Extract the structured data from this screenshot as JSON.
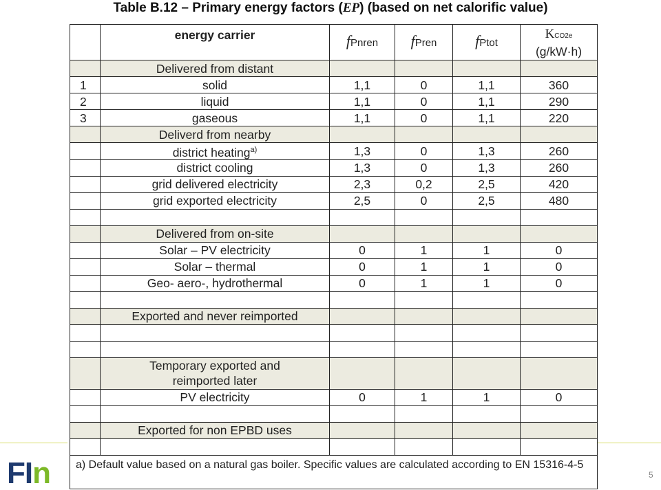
{
  "title": {
    "prefix": "Table B.12 – Primary energy factors (",
    "symbol": "EP",
    "suffix": ") (based on net calorific value)"
  },
  "table": {
    "columns": {
      "carrier": "energy carrier",
      "f_pnren": {
        "f": "f",
        "sub": "Pnren"
      },
      "f_pren": {
        "f": "f",
        "sub": "Pren"
      },
      "f_ptot": {
        "f": "f",
        "sub": "Ptot"
      },
      "k_co2e": {
        "k": "K",
        "sub": "CO2e",
        "unit": "(g/kW·h)"
      }
    },
    "rows": [
      {
        "kind": "section",
        "label": "Delivered from distant"
      },
      {
        "num": "1",
        "label": "solid",
        "pnren": "1,1",
        "pren": "0",
        "ptot": "1,1",
        "k": "360"
      },
      {
        "num": "2",
        "label": "liquid",
        "pnren": "1,1",
        "pren": "0",
        "ptot": "1,1",
        "k": "290"
      },
      {
        "num": "3",
        "label": "gaseous",
        "pnren": "1,1",
        "pren": "0",
        "ptot": "1,1",
        "k": "220"
      },
      {
        "kind": "section",
        "label": "Deliverd from nearby"
      },
      {
        "label": "district heating",
        "sup": "a)",
        "pnren": "1,3",
        "pren": "0",
        "ptot": "1,3",
        "k": "260"
      },
      {
        "label": "district cooling",
        "pnren": "1,3",
        "pren": "0",
        "ptot": "1,3",
        "k": "260"
      },
      {
        "label": "grid delivered electricity",
        "pnren": "2,3",
        "pren": "0,2",
        "ptot": "2,5",
        "k": "420"
      },
      {
        "label": "grid exported electricity",
        "pnren": "2,5",
        "pren": "0",
        "ptot": "2,5",
        "k": "480"
      },
      {
        "kind": "blank"
      },
      {
        "kind": "section",
        "label": "Delivered from on-site"
      },
      {
        "label": "Solar – PV electricity",
        "pnren": "0",
        "pren": "1",
        "ptot": "1",
        "k": "0"
      },
      {
        "label": "Solar – thermal",
        "pnren": "0",
        "pren": "1",
        "ptot": "1",
        "k": "0"
      },
      {
        "label": "Geo- aero-, hydrothermal",
        "pnren": "0",
        "pren": "1",
        "ptot": "1",
        "k": "0"
      },
      {
        "kind": "blank"
      },
      {
        "kind": "section",
        "label": "Exported and never reimported"
      },
      {
        "kind": "blank"
      },
      {
        "kind": "blank"
      },
      {
        "kind": "section",
        "two_line": true,
        "label": "Temporary exported and",
        "label2": "reimported later"
      },
      {
        "label": "PV electricity",
        "pnren": "0",
        "pren": "1",
        "ptot": "1",
        "k": "0"
      },
      {
        "kind": "blank"
      },
      {
        "kind": "section",
        "label": "Exported for non EPBD uses"
      },
      {
        "kind": "blank"
      }
    ],
    "footnote": "a) Default value based on a natural gas boiler. Specific values are calculated according to EN 15316-4-5"
  },
  "logo": {
    "part1": "FI",
    "part2": "n",
    "color1": "#1e3a6e",
    "color2": "#7db928"
  },
  "page_number": "5",
  "colors": {
    "section_bg": "#ecebe0",
    "accent_line": "#d6dc66"
  }
}
